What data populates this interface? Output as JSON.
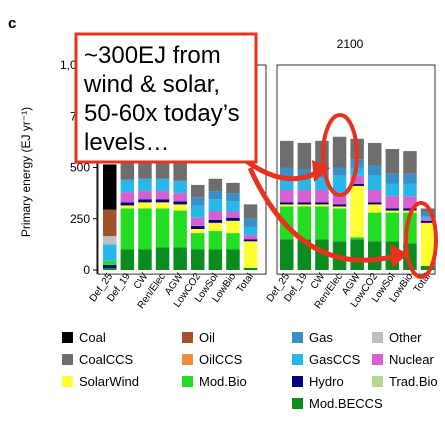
{
  "panel_label": "c",
  "callout": {
    "lines": [
      "~300EJ from",
      "wind & solar,",
      "50-60x today’s",
      "levels…"
    ],
    "box_color": "#e8321e",
    "arrow_color": "#e8321e"
  },
  "chart_data": {
    "type": "bar",
    "stacked": true,
    "ylabel": "Primary energy (EJ yr⁻¹)",
    "yticks": [
      "0",
      "250",
      "500",
      "750",
      "1,000"
    ],
    "ytick_values": [
      0,
      250,
      500,
      750,
      1000
    ],
    "ylim": [
      -20,
      1000
    ],
    "panels": [
      {
        "title": "2100",
        "categories": [
          "Def_25",
          "Def_19",
          "CW",
          "Ren/Elec",
          "AGW",
          "LowCO2",
          "LowSol",
          "LowBio",
          "Total"
        ],
        "series": [
          {
            "name": "Mod.BECCS",
            "values": [
              150,
              150,
              150,
              140,
              150,
              140,
              140,
              130,
              20
            ]
          },
          {
            "name": "Mod.Bio",
            "values": [
              160,
              160,
              160,
              160,
              10,
              140,
              140,
              150,
              0
            ]
          },
          {
            "name": "SolarWind",
            "values": [
              10,
              10,
              10,
              10,
              250,
              40,
              10,
              10,
              210
            ]
          },
          {
            "name": "Hydro",
            "values": [
              10,
              10,
              10,
              10,
              10,
              10,
              10,
              10,
              10
            ]
          },
          {
            "name": "Nuclear",
            "values": [
              60,
              60,
              60,
              60,
              40,
              60,
              60,
              60,
              10
            ]
          },
          {
            "name": "GasCCS",
            "values": [
              60,
              60,
              60,
              80,
              40,
              70,
              60,
              60,
              10
            ]
          },
          {
            "name": "Gas",
            "values": [
              50,
              40,
              50,
              40,
              40,
              50,
              50,
              50,
              20
            ]
          },
          {
            "name": "CoalCCS",
            "values": [
              130,
              130,
              130,
              150,
              100,
              110,
              120,
              110,
              20
            ]
          }
        ]
      }
    ],
    "legend": [
      {
        "name": "Coal",
        "color": "#000000"
      },
      {
        "name": "Oil",
        "color": "#a0522d"
      },
      {
        "name": "Gas",
        "color": "#3a8fc8"
      },
      {
        "name": "Other",
        "color": "#bfbfbf"
      },
      {
        "name": "CoalCCS",
        "color": "#6e6e6e"
      },
      {
        "name": "OilCCS",
        "color": "#f08a3c"
      },
      {
        "name": "GasCCS",
        "color": "#29b6e8"
      },
      {
        "name": "Nuclear",
        "color": "#d65fd2"
      },
      {
        "name": "SolarWind",
        "color": "#ffff33"
      },
      {
        "name": "Mod.Bio",
        "color": "#22dd22"
      },
      {
        "name": "Hydro",
        "color": "#000080"
      },
      {
        "name": "Trad.Bio",
        "color": "#b3d98c"
      },
      {
        "name": "Mod.BECCS",
        "color": "#0a8c1e"
      }
    ],
    "legend_position": "bottom",
    "partial_left_panel": {
      "stacks": [
        [
          [
            "Mod.BECCS",
            10
          ],
          [
            "Hydro",
            15
          ],
          [
            "Mod.Bio",
            20
          ],
          [
            "GasCCS",
            80
          ],
          [
            "Other",
            40
          ],
          [
            "Oil",
            130
          ],
          [
            "Coal",
            220
          ]
        ],
        [
          [
            "Mod.BECCS",
            100
          ],
          [
            "Mod.Bio",
            200
          ],
          [
            "SolarWind",
            15
          ],
          [
            "Hydro",
            15
          ],
          [
            "Nuclear",
            50
          ],
          [
            "GasCCS",
            60
          ],
          [
            "CoalCCS",
            120
          ]
        ],
        [
          [
            "Mod.BECCS",
            100
          ],
          [
            "Mod.Bio",
            200
          ],
          [
            "SolarWind",
            30
          ],
          [
            "Hydro",
            15
          ],
          [
            "Nuclear",
            40
          ],
          [
            "GasCCS",
            60
          ],
          [
            "CoalCCS",
            100
          ]
        ],
        [
          [
            "Mod.BECCS",
            110
          ],
          [
            "Mod.Bio",
            190
          ],
          [
            "SolarWind",
            30
          ],
          [
            "Hydro",
            15
          ],
          [
            "Nuclear",
            40
          ],
          [
            "GasCCS",
            60
          ],
          [
            "CoalCCS",
            110
          ]
        ],
        [
          [
            "Mod.BECCS",
            110
          ],
          [
            "Mod.Bio",
            180
          ],
          [
            "SolarWind",
            30
          ],
          [
            "Hydro",
            15
          ],
          [
            "Nuclear",
            40
          ],
          [
            "GasCCS",
            60
          ],
          [
            "CoalCCS",
            100
          ]
        ],
        [
          [
            "Mod.BECCS",
            100
          ],
          [
            "Mod.Bio",
            80
          ],
          [
            "SolarWind",
            20
          ],
          [
            "Hydro",
            15
          ],
          [
            "Nuclear",
            40
          ],
          [
            "GasCCS",
            60
          ],
          [
            "Gas",
            40
          ],
          [
            "CoalCCS",
            60
          ]
        ],
        [
          [
            "Mod.BECCS",
            100
          ],
          [
            "Mod.Bio",
            90
          ],
          [
            "SolarWind",
            40
          ],
          [
            "Hydro",
            15
          ],
          [
            "Nuclear",
            40
          ],
          [
            "GasCCS",
            60
          ],
          [
            "Gas",
            40
          ],
          [
            "CoalCCS",
            60
          ]
        ],
        [
          [
            "Mod.BECCS",
            100
          ],
          [
            "Mod.Bio",
            80
          ],
          [
            "SolarWind",
            60
          ],
          [
            "Hydro",
            15
          ],
          [
            "Nuclear",
            30
          ],
          [
            "GasCCS",
            50
          ],
          [
            "Gas",
            40
          ],
          [
            "CoalCCS",
            50
          ]
        ],
        [
          [
            "Mod.BECCS",
            10
          ],
          [
            "Mod.Bio",
            0
          ],
          [
            "SolarWind",
            130
          ],
          [
            "Hydro",
            10
          ],
          [
            "Nuclear",
            20
          ],
          [
            "GasCCS",
            40
          ],
          [
            "Gas",
            40
          ],
          [
            "CoalCCS",
            70
          ]
        ]
      ],
      "categories": [
        "Def_25",
        "Def_19",
        "CW",
        "Ren/Elec",
        "AGW",
        "LowCO2",
        "LowSol",
        "LowBio",
        "Total"
      ]
    }
  }
}
